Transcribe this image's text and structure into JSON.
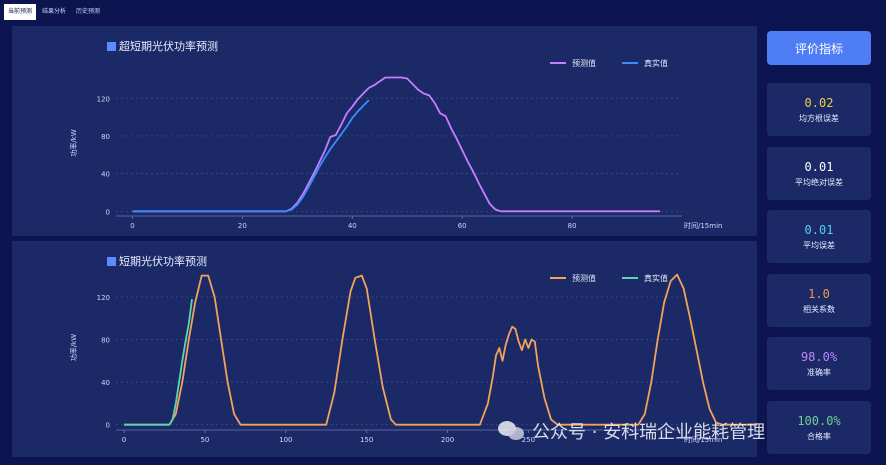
{
  "tabs": [
    "当前预测",
    "结果分析",
    "历史预测"
  ],
  "sidebar": {
    "button_label": "评价指标",
    "metrics": [
      {
        "value": "0.02",
        "label": "均方根误差",
        "color": "#f2c94c"
      },
      {
        "value": "0.01",
        "label": "平均绝对误差",
        "color": "#ffffff"
      },
      {
        "value": "0.01",
        "label": "平均误差",
        "color": "#56ccf2"
      },
      {
        "value": "1.0",
        "label": "相关系数",
        "color": "#f2994a"
      },
      {
        "value": "98.0%",
        "label": "准确率",
        "color": "#bb86fc"
      },
      {
        "value": "100.0%",
        "label": "合格率",
        "color": "#6fcf97"
      }
    ]
  },
  "watermark": "公众号 · 安科瑞企业能耗管理",
  "chart_data": [
    {
      "type": "line",
      "title": "超短期光伏功率预测",
      "xlabel": "时间/15min",
      "ylabel": "功率/kW",
      "xlim": [
        -3,
        100
      ],
      "ylim": [
        -5,
        150
      ],
      "xticks": [
        0,
        20,
        40,
        60,
        80
      ],
      "yticks": [
        0,
        40,
        80,
        120
      ],
      "grid": true,
      "legend": "top-right",
      "series": [
        {
          "name": "预测值",
          "color": "#c77dff",
          "x": [
            0,
            28,
            29,
            30,
            31,
            32,
            33,
            34,
            35,
            36,
            37,
            38,
            39,
            40,
            41,
            42,
            43,
            44,
            45,
            46,
            47,
            48,
            49,
            50,
            51,
            52,
            53,
            54,
            55,
            56,
            57,
            58,
            59,
            60,
            61,
            62,
            63,
            64,
            65,
            66,
            67,
            68,
            69,
            96
          ],
          "y": [
            0,
            0,
            3,
            9,
            18,
            29,
            40,
            52,
            64,
            79,
            81,
            92,
            104,
            111,
            119,
            125,
            131,
            134,
            138,
            142,
            142,
            142,
            142,
            141,
            135,
            129,
            125,
            123,
            115,
            104,
            101,
            88,
            77,
            65,
            53,
            42,
            30,
            19,
            8,
            2,
            0,
            0,
            0,
            0
          ]
        },
        {
          "name": "真实值",
          "color": "#3b8bff",
          "x": [
            0,
            28,
            29,
            30,
            31,
            32,
            33,
            34,
            35,
            36,
            37,
            38,
            39,
            40,
            41,
            42,
            43
          ],
          "y": [
            0,
            0,
            2,
            7,
            15,
            25,
            36,
            47,
            57,
            66,
            74,
            82,
            90,
            99,
            106,
            112,
            118
          ]
        }
      ]
    },
    {
      "type": "line",
      "title": "短期光伏功率预测",
      "xlabel": "时间/15min",
      "ylabel": "功率/kW",
      "xlim": [
        -5,
        345
      ],
      "ylim": [
        -5,
        150
      ],
      "xticks": [
        0,
        50,
        100,
        150,
        200,
        250
      ],
      "yticks": [
        0,
        40,
        80,
        120
      ],
      "grid": true,
      "legend": "top-right",
      "series": [
        {
          "name": "预测值",
          "color": "#f4a259",
          "x": [
            0,
            28,
            32,
            36,
            40,
            44,
            48,
            52,
            56,
            60,
            64,
            68,
            72,
            125,
            130,
            135,
            140,
            143,
            147,
            150,
            155,
            160,
            165,
            168,
            220,
            225,
            228,
            230,
            232,
            234,
            236,
            238,
            240,
            242,
            244,
            246,
            248,
            250,
            252,
            254,
            256,
            260,
            264,
            268,
            318,
            322,
            326,
            330,
            334,
            338,
            342,
            346,
            350,
            354,
            358,
            362,
            366,
            370,
            395
          ],
          "y": [
            0,
            0,
            10,
            40,
            80,
            115,
            140,
            140,
            120,
            80,
            40,
            10,
            0,
            0,
            30,
            80,
            125,
            138,
            140,
            128,
            80,
            35,
            5,
            0,
            0,
            20,
            45,
            65,
            72,
            60,
            75,
            85,
            92,
            90,
            78,
            70,
            80,
            72,
            80,
            78,
            55,
            25,
            5,
            0,
            0,
            10,
            40,
            80,
            115,
            135,
            141,
            128,
            100,
            70,
            40,
            15,
            2,
            0,
            0
          ]
        },
        {
          "name": "真实值",
          "color": "#5dd6b0",
          "x": [
            0,
            28,
            30,
            32,
            34,
            36,
            38,
            40,
            42
          ],
          "y": [
            0,
            0,
            5,
            20,
            40,
            60,
            78,
            95,
            118
          ]
        }
      ]
    }
  ]
}
